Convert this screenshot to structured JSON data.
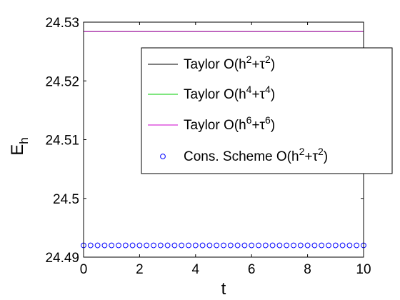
{
  "chart_data": {
    "type": "line",
    "title": "",
    "xlabel": "t",
    "ylabel": {
      "base": "E",
      "sub": "h"
    },
    "xlim": [
      0,
      10
    ],
    "ylim": [
      24.49,
      24.53
    ],
    "xticks": [
      0,
      2,
      4,
      6,
      8,
      10
    ],
    "xtick_labels": [
      "0",
      "2",
      "4",
      "6",
      "8",
      "10"
    ],
    "yticks": [
      24.49,
      24.5,
      24.51,
      24.52,
      24.53
    ],
    "ytick_labels": [
      "24.49",
      "24.5",
      "24.51",
      "24.52",
      "24.53"
    ],
    "grid": false,
    "legend_position": "top-right",
    "series": [
      {
        "id": "taylor2",
        "legend": {
          "prefix": "Taylor O(h",
          "p1": "2",
          "mid": "+τ",
          "p2": "2",
          "suffix": ")"
        },
        "style": "line",
        "color": "#000000",
        "x": [
          0,
          10
        ],
        "y": [
          24.5284,
          24.5284
        ]
      },
      {
        "id": "taylor4",
        "legend": {
          "prefix": "Taylor O(h",
          "p1": "4",
          "mid": "+τ",
          "p2": "4",
          "suffix": ")"
        },
        "style": "line",
        "color": "#00cc00",
        "x": [
          0,
          10
        ],
        "y": [
          24.5284,
          24.5284
        ]
      },
      {
        "id": "taylor6",
        "legend": {
          "prefix": "Taylor O(h",
          "p1": "6",
          "mid": "+τ",
          "p2": "6",
          "suffix": ")"
        },
        "style": "line",
        "color": "#cc00cc",
        "x": [
          0,
          10
        ],
        "y": [
          24.5284,
          24.5284
        ]
      },
      {
        "id": "cons",
        "legend": {
          "prefix": "Cons. Scheme O(h",
          "p1": "2",
          "mid": "+τ",
          "p2": "2",
          "suffix": ")"
        },
        "style": "markers",
        "color": "#0000ff",
        "x": [
          0,
          0.25,
          0.5,
          0.75,
          1,
          1.25,
          1.5,
          1.75,
          2,
          2.25,
          2.5,
          2.75,
          3,
          3.25,
          3.5,
          3.75,
          4,
          4.25,
          4.5,
          4.75,
          5,
          5.25,
          5.5,
          5.75,
          6,
          6.25,
          6.5,
          6.75,
          7,
          7.25,
          7.5,
          7.75,
          8,
          8.25,
          8.5,
          8.75,
          9,
          9.25,
          9.5,
          9.75,
          10
        ],
        "y": [
          24.492,
          24.492,
          24.492,
          24.492,
          24.492,
          24.492,
          24.492,
          24.492,
          24.492,
          24.492,
          24.492,
          24.492,
          24.492,
          24.492,
          24.492,
          24.492,
          24.492,
          24.492,
          24.492,
          24.492,
          24.492,
          24.492,
          24.492,
          24.492,
          24.492,
          24.492,
          24.492,
          24.492,
          24.492,
          24.492,
          24.492,
          24.492,
          24.492,
          24.492,
          24.492,
          24.492,
          24.492,
          24.492,
          24.492,
          24.492,
          24.492
        ]
      }
    ]
  }
}
